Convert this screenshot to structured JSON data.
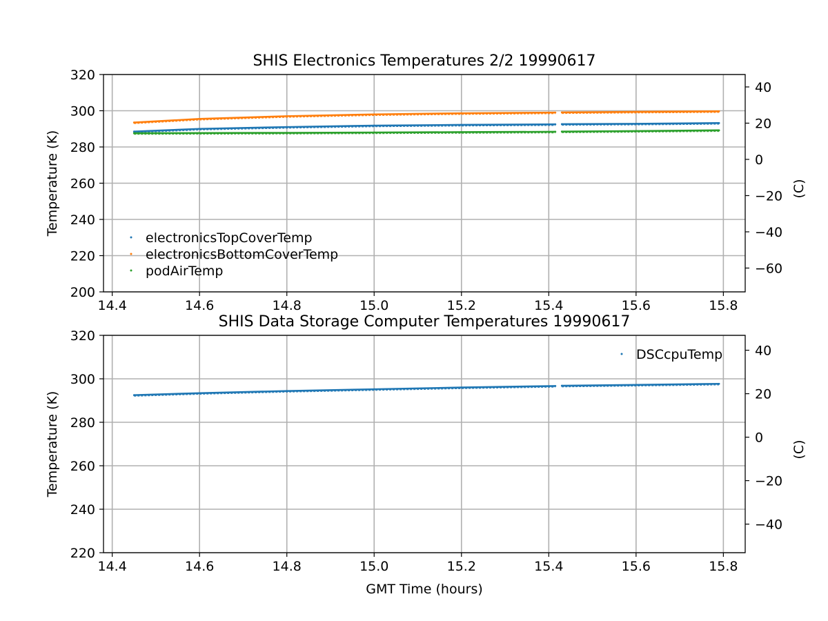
{
  "chart_data": [
    {
      "type": "scatter",
      "title": "SHIS Electronics Temperatures 2/2 19990617",
      "xlabel": "",
      "ylabel": "Temperature (K)",
      "y2label": "(C)",
      "xlim": [
        14.38,
        15.85
      ],
      "ylim": [
        200,
        320
      ],
      "y2lim": [
        -73.15,
        46.85
      ],
      "xticks": [
        "14.4",
        "14.6",
        "14.8",
        "15.0",
        "15.2",
        "15.4",
        "15.6",
        "15.8"
      ],
      "yticks": [
        "200",
        "220",
        "240",
        "260",
        "280",
        "300",
        "320"
      ],
      "y2ticks": [
        "−60",
        "−40",
        "−20",
        "0",
        "20",
        "40"
      ],
      "grid": true,
      "legend_position": "lower-left",
      "gap": [
        15.415,
        15.43
      ],
      "series": [
        {
          "name": "electronicsTopCoverTemp",
          "color": "#1f77b4",
          "x": [
            14.45,
            14.6,
            14.8,
            15.0,
            15.2,
            15.415,
            15.43,
            15.6,
            15.79
          ],
          "y": [
            288.5,
            290.0,
            291.0,
            291.8,
            292.2,
            292.5,
            292.6,
            292.8,
            293.2
          ]
        },
        {
          "name": "electronicsBottomCoverTemp",
          "color": "#ff7f0e",
          "x": [
            14.45,
            14.6,
            14.8,
            15.0,
            15.2,
            15.415,
            15.43,
            15.6,
            15.79
          ],
          "y": [
            293.5,
            295.5,
            297.0,
            298.0,
            298.6,
            299.0,
            299.1,
            299.4,
            299.7
          ]
        },
        {
          "name": "podAirTemp",
          "color": "#2ca02c",
          "x": [
            14.45,
            14.6,
            14.8,
            15.0,
            15.2,
            15.415,
            15.43,
            15.6,
            15.79
          ],
          "y": [
            287.6,
            287.7,
            287.8,
            288.0,
            288.2,
            288.4,
            288.5,
            288.8,
            289.2
          ]
        }
      ]
    },
    {
      "type": "scatter",
      "title": "SHIS Data Storage Computer Temperatures 19990617",
      "xlabel": "GMT Time (hours)",
      "ylabel": "Temperature (K)",
      "y2label": "(C)",
      "xlim": [
        14.38,
        15.85
      ],
      "ylim": [
        220,
        320
      ],
      "y2lim": [
        -53.15,
        46.85
      ],
      "xticks": [
        "14.4",
        "14.6",
        "14.8",
        "15.0",
        "15.2",
        "15.4",
        "15.6",
        "15.8"
      ],
      "yticks": [
        "220",
        "240",
        "260",
        "280",
        "300",
        "320"
      ],
      "y2ticks": [
        "−40",
        "−20",
        "0",
        "20",
        "40"
      ],
      "grid": true,
      "legend_position": "top-right",
      "gap": [
        15.415,
        15.43
      ],
      "series": [
        {
          "name": "DSCcpuTemp",
          "color": "#1f77b4",
          "x": [
            14.45,
            14.6,
            14.8,
            15.0,
            15.2,
            15.415,
            15.43,
            15.6,
            15.79
          ],
          "y": [
            292.5,
            293.4,
            294.4,
            295.2,
            296.0,
            296.7,
            296.8,
            297.2,
            297.7
          ]
        }
      ]
    }
  ]
}
